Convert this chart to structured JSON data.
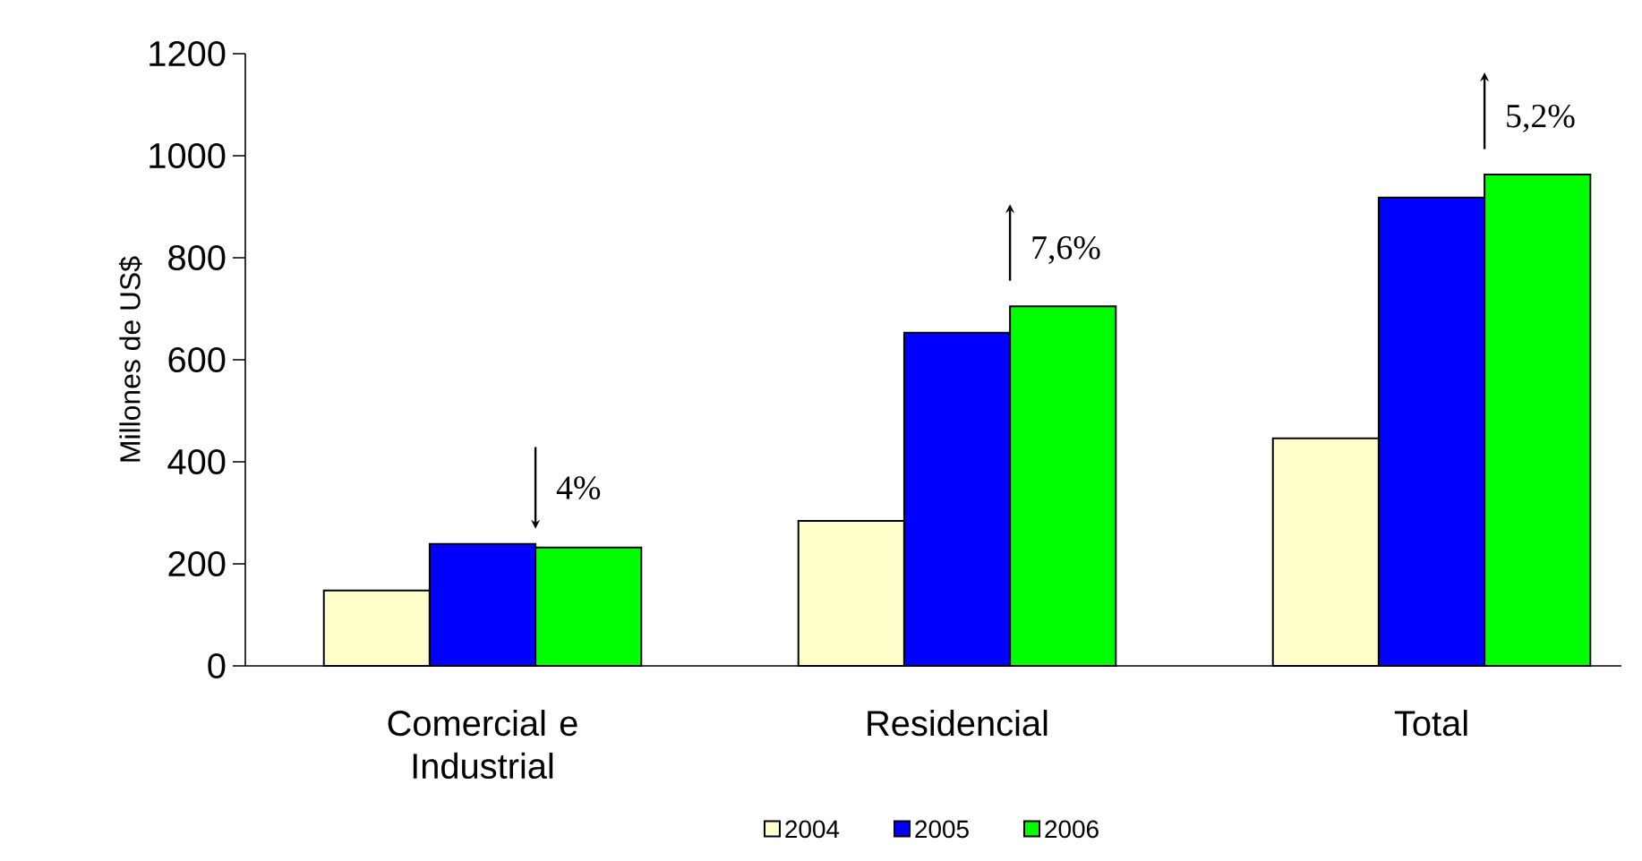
{
  "chart_data": {
    "type": "bar",
    "ylabel": "Millones de US$",
    "categories": [
      "Comercial e Industrial",
      "Residencial",
      "Total"
    ],
    "series": [
      {
        "name": "2004",
        "color": "#ffffcc",
        "values": [
          148,
          284,
          446
        ]
      },
      {
        "name": "2005",
        "color": "#0000ff",
        "values": [
          239,
          653,
          918
        ]
      },
      {
        "name": "2006",
        "color": "#00ff00",
        "values": [
          232,
          705,
          963
        ]
      }
    ],
    "ylim": [
      0,
      1200
    ],
    "yticks": [
      0,
      200,
      400,
      600,
      800,
      1000,
      1200
    ],
    "grid": false,
    "legend": "bottom",
    "annotations": [
      "4%",
      "7,6%",
      "5,2%"
    ]
  }
}
